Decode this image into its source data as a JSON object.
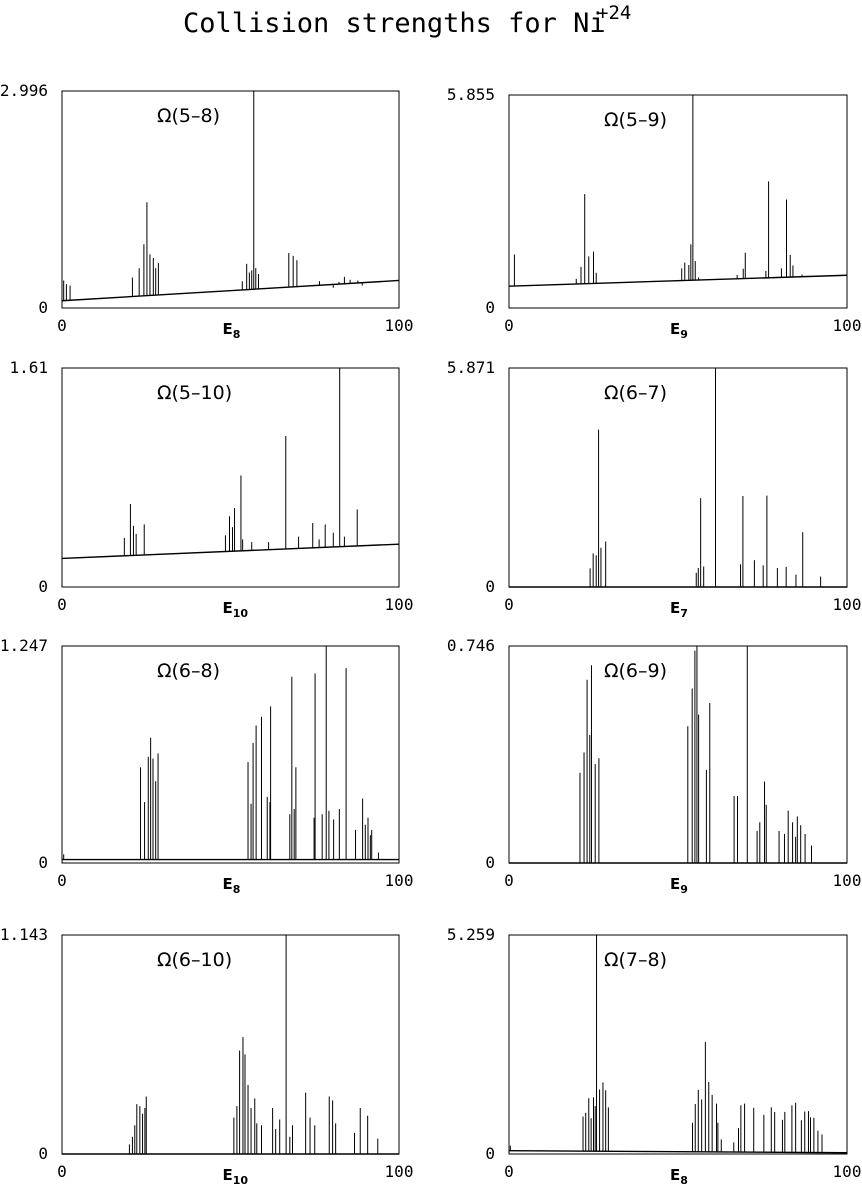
{
  "title": {
    "main": "Collision strengths for Ni",
    "superscript": "+24"
  },
  "chart_data": [
    {
      "type": "line",
      "title": "Ω(5–8)",
      "xlabel_base": "E",
      "xlabel_sub": "8",
      "xlim": [
        0,
        100
      ],
      "ylim": [
        0,
        2.996
      ],
      "xtick_labels": [
        "0",
        "100"
      ],
      "ytick_labels": [
        "0",
        "2.996"
      ],
      "baseline": [
        0.1,
        0.38
      ],
      "peaks": [
        [
          0.5,
          0.38
        ],
        [
          1.3,
          0.33
        ],
        [
          2.4,
          0.31
        ],
        [
          20.9,
          0.42
        ],
        [
          22.9,
          0.55
        ],
        [
          24.3,
          0.88
        ],
        [
          25.2,
          1.46
        ],
        [
          26.1,
          0.74
        ],
        [
          27.1,
          0.69
        ],
        [
          27.8,
          0.55
        ],
        [
          28.6,
          0.62
        ],
        [
          53.5,
          0.37
        ],
        [
          54.8,
          0.61
        ],
        [
          55.6,
          0.49
        ],
        [
          56.3,
          0.52
        ],
        [
          56.9,
          2.996
        ],
        [
          57.5,
          0.55
        ],
        [
          58.3,
          0.47
        ],
        [
          67.3,
          0.76
        ],
        [
          68.6,
          0.72
        ],
        [
          69.7,
          0.66
        ],
        [
          74.2,
          0.31
        ],
        [
          76.4,
          0.37
        ],
        [
          80.5,
          0.28
        ],
        [
          82.2,
          0.36
        ],
        [
          83.8,
          0.43
        ],
        [
          85.5,
          0.39
        ],
        [
          87.8,
          0.38
        ],
        [
          89.1,
          0.31
        ]
      ]
    },
    {
      "type": "line",
      "title": "Ω(5–9)",
      "xlabel_base": "E",
      "xlabel_sub": "9",
      "xlim": [
        0,
        100
      ],
      "ylim": [
        0,
        5.855
      ],
      "xtick_labels": [
        "0",
        "100"
      ],
      "ytick_labels": [
        "0",
        "5.855"
      ],
      "baseline": [
        0.6,
        0.9
      ],
      "peaks": [
        [
          1.6,
          1.47
        ],
        [
          19.9,
          0.8
        ],
        [
          21.3,
          1.13
        ],
        [
          22.4,
          3.13
        ],
        [
          23.6,
          1.42
        ],
        [
          25.0,
          1.55
        ],
        [
          25.8,
          0.97
        ],
        [
          51.1,
          1.09
        ],
        [
          52.0,
          1.25
        ],
        [
          53.2,
          1.18
        ],
        [
          53.8,
          1.75
        ],
        [
          54.4,
          5.855
        ],
        [
          55.1,
          1.29
        ],
        [
          56.1,
          0.84
        ],
        [
          67.5,
          0.91
        ],
        [
          69.3,
          1.08
        ],
        [
          69.9,
          1.52
        ],
        [
          71.7,
          0.81
        ],
        [
          76.0,
          1.02
        ],
        [
          76.8,
          3.48
        ],
        [
          80.6,
          1.09
        ],
        [
          82.1,
          2.98
        ],
        [
          83.2,
          1.46
        ],
        [
          84.0,
          1.17
        ],
        [
          86.7,
          0.92
        ]
      ]
    },
    {
      "type": "line",
      "title": "Ω(5–10)",
      "xlabel_base": "E",
      "xlabel_sub": "10",
      "xlim": [
        0,
        100
      ],
      "ylim": [
        0,
        1.61
      ],
      "xtick_labels": [
        "0",
        "100"
      ],
      "ytick_labels": [
        "0",
        "1.61"
      ],
      "baseline": [
        0.21,
        0.315
      ],
      "peaks": [
        [
          18.5,
          0.36
        ],
        [
          20.3,
          0.61
        ],
        [
          21.2,
          0.45
        ],
        [
          22.0,
          0.39
        ],
        [
          24.4,
          0.46
        ],
        [
          48.5,
          0.38
        ],
        [
          49.7,
          0.52
        ],
        [
          50.6,
          0.44
        ],
        [
          51.2,
          0.58
        ],
        [
          53.1,
          0.82
        ],
        [
          53.6,
          0.35
        ],
        [
          56.3,
          0.33
        ],
        [
          61.3,
          0.33
        ],
        [
          66.4,
          1.11
        ],
        [
          70.2,
          0.37
        ],
        [
          74.4,
          0.47
        ],
        [
          76.3,
          0.35
        ],
        [
          78.1,
          0.46
        ],
        [
          80.5,
          0.4
        ],
        [
          82.4,
          1.61
        ],
        [
          83.8,
          0.37
        ],
        [
          87.6,
          0.57
        ]
      ]
    },
    {
      "type": "line",
      "title": "Ω(6–7)",
      "xlabel_base": "E",
      "xlabel_sub": "7",
      "xlim": [
        0,
        100
      ],
      "ylim": [
        0,
        5.871
      ],
      "xtick_labels": [
        "0",
        "100"
      ],
      "ytick_labels": [
        "0",
        "5.871"
      ],
      "baseline": [
        0.0,
        0.0
      ],
      "peaks": [
        [
          24.0,
          0.5
        ],
        [
          24.9,
          0.9
        ],
        [
          25.8,
          0.85
        ],
        [
          26.5,
          4.22
        ],
        [
          27.2,
          1.05
        ],
        [
          28.6,
          1.22
        ],
        [
          55.4,
          0.38
        ],
        [
          56.0,
          0.51
        ],
        [
          56.7,
          2.38
        ],
        [
          57.6,
          0.55
        ],
        [
          61.1,
          5.871
        ],
        [
          68.5,
          0.61
        ],
        [
          69.2,
          2.44
        ],
        [
          72.6,
          0.72
        ],
        [
          75.2,
          0.58
        ],
        [
          76.3,
          2.45
        ],
        [
          79.4,
          0.51
        ],
        [
          82.0,
          0.54
        ],
        [
          84.9,
          0.33
        ],
        [
          86.9,
          1.47
        ],
        [
          92.2,
          0.28
        ]
      ]
    },
    {
      "type": "line",
      "title": "Ω(6–8)",
      "xlabel_base": "E",
      "xlabel_sub": "8",
      "xlim": [
        0,
        100
      ],
      "ylim": [
        0,
        1.247
      ],
      "xtick_labels": [
        "0",
        "100"
      ],
      "ytick_labels": [
        "0",
        "1.247"
      ],
      "baseline": [
        0.02,
        0.02
      ],
      "peaks": [
        [
          0.5,
          0.05
        ],
        [
          23.3,
          0.55
        ],
        [
          24.5,
          0.35
        ],
        [
          25.6,
          0.61
        ],
        [
          26.3,
          0.72
        ],
        [
          27.0,
          0.6
        ],
        [
          27.8,
          0.47
        ],
        [
          28.5,
          0.63
        ],
        [
          55.2,
          0.58
        ],
        [
          56.1,
          0.34
        ],
        [
          56.7,
          0.69
        ],
        [
          57.6,
          0.79
        ],
        [
          59.2,
          0.84
        ],
        [
          60.9,
          0.38
        ],
        [
          61.7,
          0.35
        ],
        [
          61.9,
          0.9
        ],
        [
          67.6,
          0.28
        ],
        [
          68.2,
          1.07
        ],
        [
          68.9,
          0.31
        ],
        [
          69.4,
          0.55
        ],
        [
          74.8,
          0.26
        ],
        [
          75.1,
          1.09
        ],
        [
          77.2,
          0.28
        ],
        [
          78.4,
          1.247
        ],
        [
          79.2,
          0.3
        ],
        [
          80.6,
          0.25
        ],
        [
          82.3,
          0.31
        ],
        [
          84.3,
          1.12
        ],
        [
          87.1,
          0.19
        ],
        [
          89.2,
          0.37
        ],
        [
          90.0,
          0.22
        ],
        [
          90.8,
          0.26
        ],
        [
          91.5,
          0.16
        ],
        [
          91.9,
          0.19
        ],
        [
          93.9,
          0.06
        ]
      ]
    },
    {
      "type": "line",
      "title": "Ω(6–9)",
      "xlabel_base": "E",
      "xlabel_sub": "9",
      "xlim": [
        0,
        100
      ],
      "ylim": [
        0,
        0.746
      ],
      "xtick_labels": [
        "0",
        "100"
      ],
      "ytick_labels": [
        "0",
        "0.746"
      ],
      "baseline": [
        0.0,
        0.0
      ],
      "peaks": [
        [
          21.0,
          0.31
        ],
        [
          22.2,
          0.38
        ],
        [
          23.1,
          0.63
        ],
        [
          23.9,
          0.44
        ],
        [
          24.4,
          0.68
        ],
        [
          25.5,
          0.34
        ],
        [
          26.6,
          0.36
        ],
        [
          52.9,
          0.47
        ],
        [
          54.2,
          0.6
        ],
        [
          55.0,
          0.73
        ],
        [
          55.6,
          0.746
        ],
        [
          56.1,
          0.51
        ],
        [
          58.4,
          0.32
        ],
        [
          59.4,
          0.55
        ],
        [
          66.6,
          0.23
        ],
        [
          67.6,
          0.23
        ],
        [
          70.5,
          0.746
        ],
        [
          73.4,
          0.11
        ],
        [
          74.2,
          0.14
        ],
        [
          75.6,
          0.28
        ],
        [
          76.1,
          0.2
        ],
        [
          79.9,
          0.11
        ],
        [
          81.5,
          0.1
        ],
        [
          82.6,
          0.18
        ],
        [
          83.9,
          0.14
        ],
        [
          84.8,
          0.09
        ],
        [
          85.3,
          0.16
        ],
        [
          86.3,
          0.13
        ],
        [
          87.6,
          0.1
        ],
        [
          89.5,
          0.06
        ]
      ]
    },
    {
      "type": "line",
      "title": "Ω(6–10)",
      "xlabel_base": "E",
      "xlabel_sub": "10",
      "xlim": [
        0,
        100
      ],
      "ylim": [
        0,
        1.143
      ],
      "xtick_labels": [
        "0",
        "100"
      ],
      "ytick_labels": [
        "0",
        "1.143"
      ],
      "baseline": [
        0.0,
        0.0
      ],
      "peaks": [
        [
          20.0,
          0.05
        ],
        [
          20.9,
          0.09
        ],
        [
          21.6,
          0.15
        ],
        [
          22.2,
          0.26
        ],
        [
          23.1,
          0.25
        ],
        [
          23.9,
          0.21
        ],
        [
          24.6,
          0.24
        ],
        [
          25.0,
          0.3
        ],
        [
          51.0,
          0.19
        ],
        [
          51.9,
          0.25
        ],
        [
          52.7,
          0.54
        ],
        [
          53.7,
          0.61
        ],
        [
          54.3,
          0.52
        ],
        [
          55.2,
          0.36
        ],
        [
          56.1,
          0.24
        ],
        [
          57.2,
          0.29
        ],
        [
          57.8,
          0.16
        ],
        [
          59.2,
          0.15
        ],
        [
          62.5,
          0.24
        ],
        [
          63.4,
          0.13
        ],
        [
          64.6,
          0.18
        ],
        [
          66.5,
          1.143
        ],
        [
          67.6,
          0.09
        ],
        [
          68.4,
          0.15
        ],
        [
          72.3,
          0.32
        ],
        [
          73.6,
          0.19
        ],
        [
          75.0,
          0.15
        ],
        [
          79.3,
          0.3
        ],
        [
          80.3,
          0.28
        ],
        [
          81.2,
          0.16
        ],
        [
          86.8,
          0.11
        ],
        [
          88.5,
          0.24
        ],
        [
          90.7,
          0.2
        ],
        [
          93.7,
          0.08
        ]
      ]
    },
    {
      "type": "line",
      "title": "Ω(7–8)",
      "xlabel_base": "E",
      "xlabel_sub": "8",
      "xlim": [
        0,
        100
      ],
      "ylim": [
        0,
        5.259
      ],
      "xtick_labels": [
        "0",
        "100"
      ],
      "ytick_labels": [
        "0",
        "5.259"
      ],
      "baseline": [
        0.08,
        0.03
      ],
      "peaks": [
        [
          0.4,
          0.2
        ],
        [
          21.9,
          0.9
        ],
        [
          22.7,
          0.99
        ],
        [
          23.6,
          1.34
        ],
        [
          24.3,
          0.86
        ],
        [
          25.0,
          1.36
        ],
        [
          25.5,
          1.15
        ],
        [
          25.9,
          5.259
        ],
        [
          26.8,
          1.55
        ],
        [
          27.8,
          1.72
        ],
        [
          28.6,
          1.53
        ],
        [
          29.4,
          1.12
        ],
        [
          54.3,
          0.75
        ],
        [
          55.1,
          1.2
        ],
        [
          56.0,
          1.54
        ],
        [
          57.0,
          1.31
        ],
        [
          58.1,
          2.69
        ],
        [
          59.1,
          1.73
        ],
        [
          60.1,
          1.42
        ],
        [
          61.4,
          1.21
        ],
        [
          61.8,
          0.75
        ],
        [
          62.8,
          0.35
        ],
        [
          66.5,
          0.28
        ],
        [
          67.9,
          0.62
        ],
        [
          68.6,
          1.17
        ],
        [
          69.7,
          1.21
        ],
        [
          72.4,
          1.11
        ],
        [
          75.4,
          0.94
        ],
        [
          77.6,
          1.12
        ],
        [
          78.6,
          1.01
        ],
        [
          80.9,
          0.82
        ],
        [
          81.6,
          1.01
        ],
        [
          83.7,
          1.17
        ],
        [
          84.8,
          1.23
        ],
        [
          86.5,
          0.81
        ],
        [
          87.5,
          1.02
        ],
        [
          88.6,
          1.03
        ],
        [
          89.2,
          0.88
        ],
        [
          90.2,
          0.87
        ],
        [
          91.4,
          0.56
        ],
        [
          92.6,
          0.47
        ]
      ]
    }
  ]
}
